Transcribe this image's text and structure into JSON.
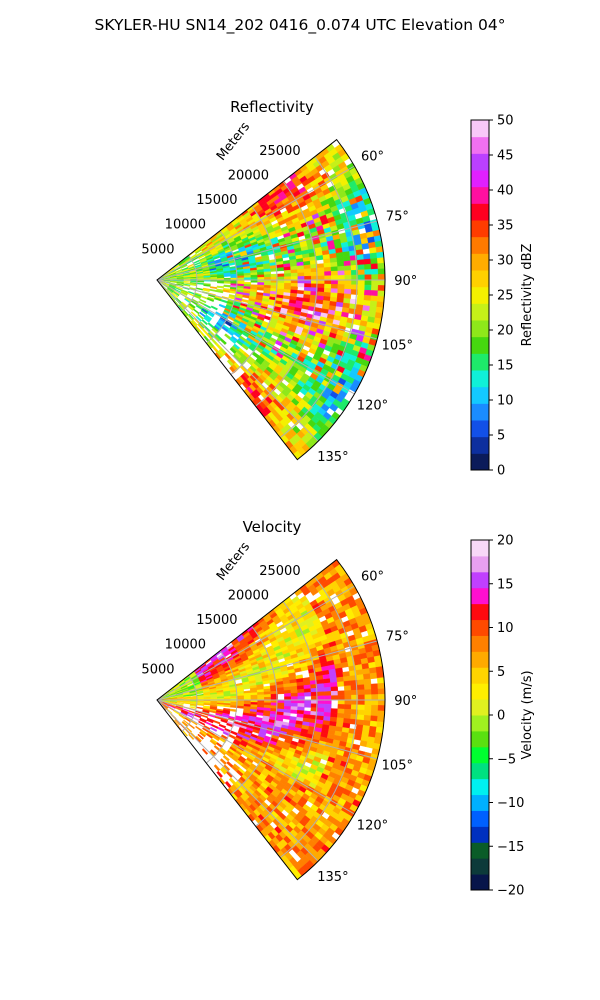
{
  "figure_title": "SKYLER-HU  SN14_202  0416_0.074 UTC Elevation 04°",
  "chart_data": [
    {
      "type": "heatmap",
      "title": "Reflectivity",
      "projection": "polar-sector",
      "theta_ticks": [
        "60°",
        "75°",
        "90°",
        "105°",
        "120°",
        "135°"
      ],
      "theta_tick_values_deg": [
        60,
        75,
        90,
        105,
        120,
        135
      ],
      "theta_range_deg": [
        52,
        142
      ],
      "r_label": "Meters",
      "r_ticks": [
        "5000",
        "10000",
        "15000",
        "20000",
        "25000"
      ],
      "r_tick_values": [
        5000,
        10000,
        15000,
        20000,
        25000
      ],
      "r_max": 28500,
      "colorbar": {
        "label": "Reflectivity dBZ",
        "range": [
          0,
          50
        ],
        "ticks": [
          "0",
          "5",
          "10",
          "15",
          "20",
          "25",
          "30",
          "35",
          "40",
          "45",
          "50"
        ],
        "colors": [
          "#0b1b5a",
          "#0d2f9e",
          "#1250e8",
          "#1a8cff",
          "#13c9ff",
          "#10f0d8",
          "#1eea6a",
          "#46d810",
          "#8ee81a",
          "#c6f018",
          "#f4f000",
          "#ffd000",
          "#ffac00",
          "#ff7a00",
          "#ff3c00",
          "#ff0020",
          "#ff10a0",
          "#e020ff",
          "#bb40ff",
          "#f070f0",
          "#f8c8f8"
        ]
      },
      "cells": "dense radar sweep: background 20-30 dBZ, scattered cores 35-45 dBZ between 70-120 degrees"
    },
    {
      "type": "heatmap",
      "title": "Velocity",
      "projection": "polar-sector",
      "theta_ticks": [
        "60°",
        "75°",
        "90°",
        "105°",
        "120°",
        "135°"
      ],
      "theta_tick_values_deg": [
        60,
        75,
        90,
        105,
        120,
        135
      ],
      "theta_range_deg": [
        52,
        142
      ],
      "r_label": "Meters",
      "r_ticks": [
        "5000",
        "10000",
        "15000",
        "20000",
        "25000"
      ],
      "r_tick_values": [
        5000,
        10000,
        15000,
        20000,
        25000
      ],
      "r_max": 28500,
      "colorbar": {
        "label": "Velocity (m/s)",
        "range": [
          -20,
          20
        ],
        "ticks": [
          "−20",
          "−15",
          "−10",
          "−5",
          "0",
          "5",
          "10",
          "15",
          "20"
        ],
        "colors": [
          "#07154a",
          "#0c3a3a",
          "#0a5c28",
          "#0030c0",
          "#0060ff",
          "#00b0ff",
          "#00f0f0",
          "#00e080",
          "#00ff30",
          "#5ae010",
          "#a0f020",
          "#e0f020",
          "#ffee00",
          "#ffd400",
          "#ffaa00",
          "#ff8000",
          "#ff4a00",
          "#ff0a10",
          "#ff10d0",
          "#c040ff",
          "#e8a0f0",
          "#f8d8f8"
        ]
      },
      "cells": "outbound flow 5-15 m/s dominating center, weak -5 to 0 m/s near radar on left"
    }
  ]
}
